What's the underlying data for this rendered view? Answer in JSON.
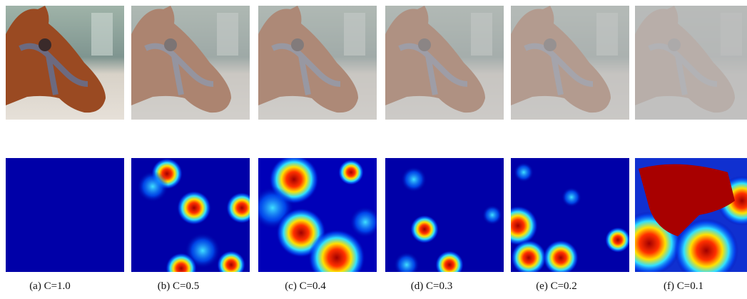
{
  "figure": {
    "captions": [
      "(a)  C=1.0",
      "(b) C=0.5",
      "(c) C=0.4",
      "(d) C=0.3",
      "(e) C=0.2",
      "(f) C=0.1"
    ]
  }
}
